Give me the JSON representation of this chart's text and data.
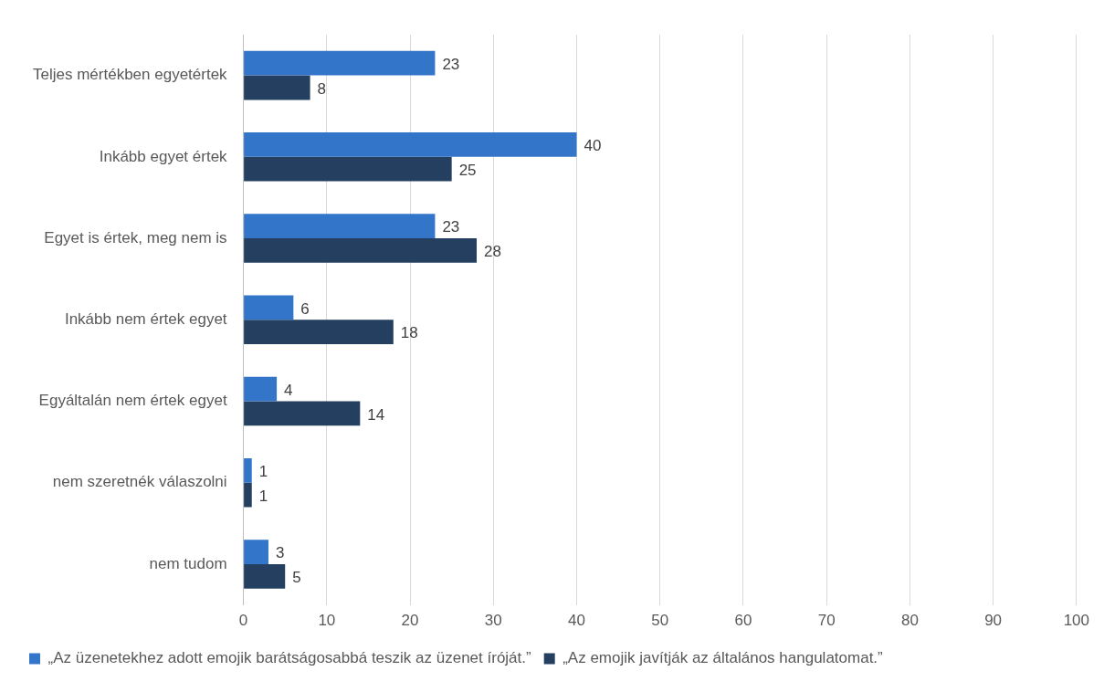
{
  "chart_data": {
    "type": "bar",
    "orientation": "horizontal",
    "categories": [
      "Teljes mértékben egyetértek",
      "Inkább egyet értek",
      "Egyet is értek, meg nem is",
      "Inkább nem értek egyet",
      "Egyáltalán nem értek egyet",
      "nem szeretnék válaszolni",
      "nem tudom"
    ],
    "series": [
      {
        "name": "„Az üzenetekhez adott emojik barátságosabbá teszik az üzenet íróját.”",
        "color": "#3375c8",
        "values": [
          23,
          40,
          23,
          6,
          4,
          1,
          3
        ]
      },
      {
        "name": "„Az emojik javítják az általános hangulatomat.”",
        "color": "#243f60",
        "values": [
          8,
          25,
          28,
          18,
          14,
          1,
          5
        ]
      }
    ],
    "xlim": [
      0,
      100
    ],
    "xticks": [
      0,
      10,
      20,
      30,
      40,
      50,
      60,
      70,
      80,
      90,
      100
    ],
    "grid": "x",
    "legend": "bottom",
    "data_labels": true
  }
}
